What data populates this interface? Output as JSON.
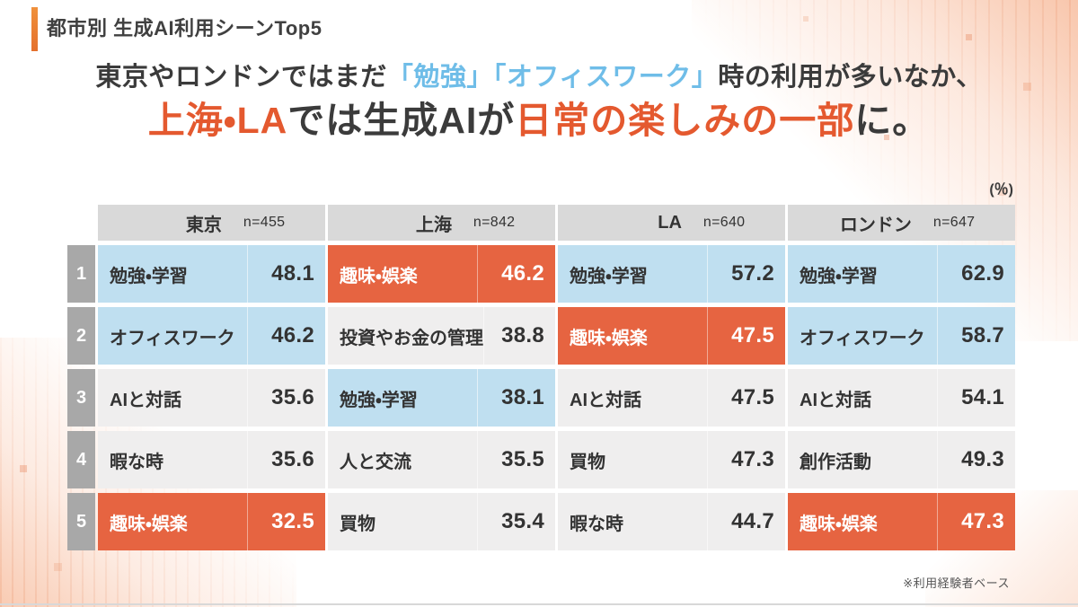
{
  "slide": {
    "title": "都市別 生成AI利用シーンTop5",
    "percent_label": "(％)",
    "footnote": "※利用経験者ベース"
  },
  "headline": {
    "line1_seg1": "東京やロンドンではまだ",
    "line1_seg2": "「勉強」「オフィスワーク」",
    "line1_seg3": "時の利用が多いなか、",
    "line2_seg1": "上海・LA",
    "line2_seg2": "では生成AIが",
    "line2_seg3": "日常の楽しみの一部",
    "line2_seg4": "に。"
  },
  "colors": {
    "accent_orange": "#e4592f",
    "cell_orange": "#e66441",
    "cell_blue": "#bfdff0",
    "headline_blue": "#6fbde8",
    "header_gray": "#d9d9d9",
    "row_gray": "#efeeee",
    "rank_gray": "#a8a8a8"
  },
  "chart_data": {
    "type": "table",
    "title": "都市別 生成AI利用シーンTop5",
    "unit": "%",
    "note": "※利用経験者ベース",
    "columns": [
      {
        "city": "東京",
        "n_label": "n=455"
      },
      {
        "city": "上海",
        "n_label": "n=842"
      },
      {
        "city": "LA",
        "n_label": "n=640"
      },
      {
        "city": "ロンドン",
        "n_label": "n=647"
      }
    ],
    "rows": [
      {
        "rank": "1",
        "cells": [
          {
            "label": "勉強・学習",
            "value": "48.1",
            "highlight": "blue"
          },
          {
            "label": "趣味・娯楽",
            "value": "46.2",
            "highlight": "orange"
          },
          {
            "label": "勉強・学習",
            "value": "57.2",
            "highlight": "blue"
          },
          {
            "label": "勉強・学習",
            "value": "62.9",
            "highlight": "blue"
          }
        ]
      },
      {
        "rank": "2",
        "cells": [
          {
            "label": "オフィスワーク",
            "value": "46.2",
            "highlight": "blue"
          },
          {
            "label": "投資やお金の管理",
            "value": "38.8",
            "highlight": "none"
          },
          {
            "label": "趣味・娯楽",
            "value": "47.5",
            "highlight": "orange"
          },
          {
            "label": "オフィスワーク",
            "value": "58.7",
            "highlight": "blue"
          }
        ]
      },
      {
        "rank": "3",
        "cells": [
          {
            "label": "AIと対話",
            "value": "35.6",
            "highlight": "none"
          },
          {
            "label": "勉強・学習",
            "value": "38.1",
            "highlight": "blue"
          },
          {
            "label": "AIと対話",
            "value": "47.5",
            "highlight": "none"
          },
          {
            "label": "AIと対話",
            "value": "54.1",
            "highlight": "none"
          }
        ]
      },
      {
        "rank": "4",
        "cells": [
          {
            "label": "暇な時",
            "value": "35.6",
            "highlight": "none"
          },
          {
            "label": "人と交流",
            "value": "35.5",
            "highlight": "none"
          },
          {
            "label": "買物",
            "value": "47.3",
            "highlight": "none"
          },
          {
            "label": "創作活動",
            "value": "49.3",
            "highlight": "none"
          }
        ]
      },
      {
        "rank": "5",
        "cells": [
          {
            "label": "趣味・娯楽",
            "value": "32.5",
            "highlight": "orange"
          },
          {
            "label": "買物",
            "value": "35.4",
            "highlight": "none"
          },
          {
            "label": "暇な時",
            "value": "44.7",
            "highlight": "none"
          },
          {
            "label": "趣味・娯楽",
            "value": "47.3",
            "highlight": "orange"
          }
        ]
      }
    ]
  }
}
